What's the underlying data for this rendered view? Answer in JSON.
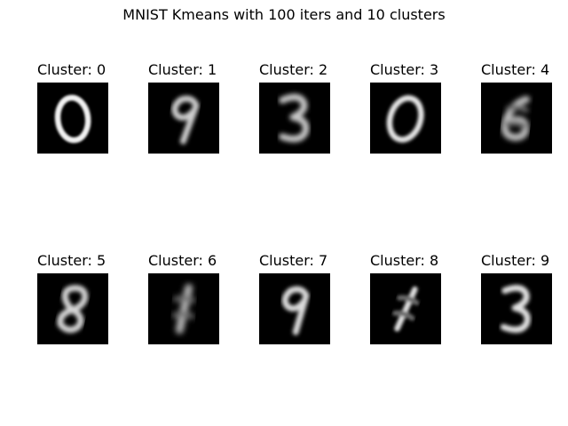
{
  "chart_data": {
    "type": "image-grid",
    "title": "MNIST Kmeans with 100 iters and 10 clusters",
    "grid": {
      "rows": 2,
      "cols": 5
    },
    "colormap": "gray",
    "panels": [
      {
        "title": "Cluster: 0",
        "cluster": 0,
        "digit_shown": "0"
      },
      {
        "title": "Cluster: 1",
        "cluster": 1,
        "digit_shown": "9"
      },
      {
        "title": "Cluster: 2",
        "cluster": 2,
        "digit_shown": "3"
      },
      {
        "title": "Cluster: 3",
        "cluster": 3,
        "digit_shown": "0"
      },
      {
        "title": "Cluster: 4",
        "cluster": 4,
        "digit_shown": "6"
      },
      {
        "title": "Cluster: 5",
        "cluster": 5,
        "digit_shown": "8"
      },
      {
        "title": "Cluster: 6",
        "cluster": 6,
        "digit_shown": "1"
      },
      {
        "title": "Cluster: 7",
        "cluster": 7,
        "digit_shown": "9"
      },
      {
        "title": "Cluster: 8",
        "cluster": 8,
        "digit_shown": "1"
      },
      {
        "title": "Cluster: 9",
        "cluster": 9,
        "digit_shown": "3"
      }
    ]
  }
}
